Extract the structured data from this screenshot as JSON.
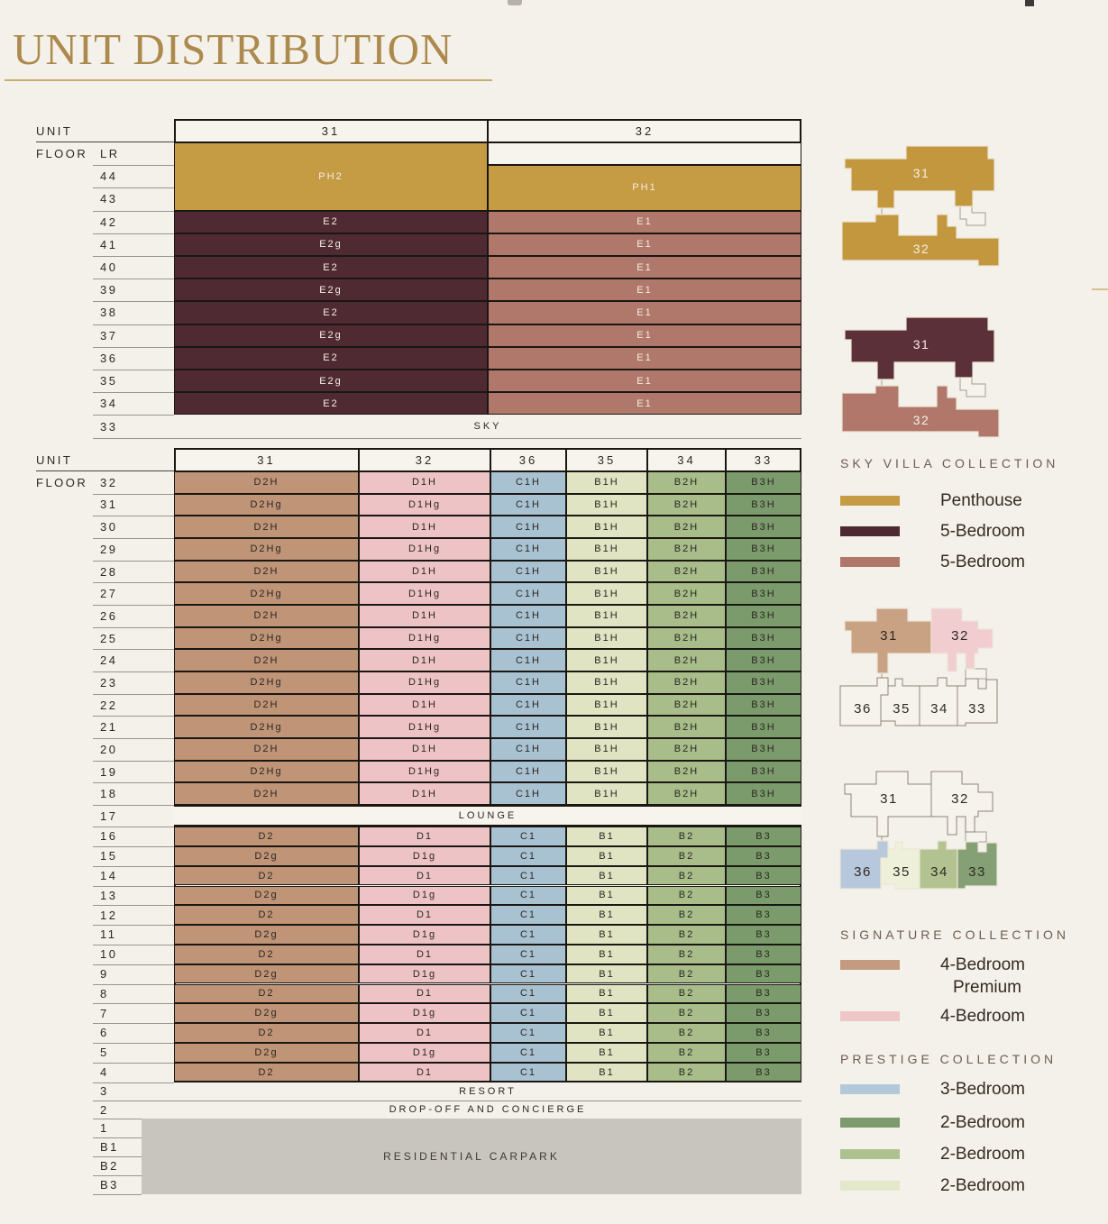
{
  "title": "UNIT DISTRIBUTION",
  "colors": {
    "background": "#f4f1ea",
    "title_gold": "#ac8a4e",
    "title_underline": "#c9ab72",
    "table_border": "#1a1713",
    "text_dark": "#2b2722",
    "text_light": "#f4eee3",
    "heading_muted": "#6d5c52",
    "legend_text": "#342a21",
    "line_gray": "#9a948a",
    "line_dark": "#4a453e",
    "cell_white": "#f7f4ee",
    "penthouse": "#c59b43",
    "bed5_dark": "#502a32",
    "bed5_light": "#b0786b",
    "bed4_premium": "#bf9477",
    "bed4": "#eec3c5",
    "bed3": "#a9c2d2",
    "bed2_pale": "#e0e4c3",
    "bed2_mid": "#a8bd8a",
    "bed2_dark": "#7c9b6c",
    "carpark_gray": "#c8c4be"
  },
  "upper_table": {
    "unit_label": "UNIT",
    "floor_label": "FLOOR",
    "units": [
      "31",
      "32"
    ],
    "floors": [
      "LR",
      "44",
      "43",
      "42",
      "41",
      "40",
      "39",
      "38",
      "37",
      "36",
      "35",
      "34"
    ],
    "cells": [
      {
        "col": 0,
        "row": 0,
        "span": 3,
        "label": "PH2",
        "key": "penthouse",
        "light": true
      },
      {
        "col": 1,
        "row": 0,
        "span": 1,
        "label": "",
        "key": "cell_white",
        "light": false
      },
      {
        "col": 1,
        "row": 1,
        "span": 2,
        "label": "PH1",
        "key": "penthouse",
        "light": true
      },
      {
        "col": 0,
        "row": 3,
        "span": 1,
        "label": "E2",
        "key": "bed5_dark",
        "light": true
      },
      {
        "col": 1,
        "row": 3,
        "span": 1,
        "label": "E1",
        "key": "bed5_light",
        "light": true
      },
      {
        "col": 0,
        "row": 4,
        "span": 1,
        "label": "E2g",
        "key": "bed5_dark",
        "light": true
      },
      {
        "col": 1,
        "row": 4,
        "span": 1,
        "label": "E1",
        "key": "bed5_light",
        "light": true
      },
      {
        "col": 0,
        "row": 5,
        "span": 1,
        "label": "E2",
        "key": "bed5_dark",
        "light": true
      },
      {
        "col": 1,
        "row": 5,
        "span": 1,
        "label": "E1",
        "key": "bed5_light",
        "light": true
      },
      {
        "col": 0,
        "row": 6,
        "span": 1,
        "label": "E2g",
        "key": "bed5_dark",
        "light": true
      },
      {
        "col": 1,
        "row": 6,
        "span": 1,
        "label": "E1",
        "key": "bed5_light",
        "light": true
      },
      {
        "col": 0,
        "row": 7,
        "span": 1,
        "label": "E2",
        "key": "bed5_dark",
        "light": true
      },
      {
        "col": 1,
        "row": 7,
        "span": 1,
        "label": "E1",
        "key": "bed5_light",
        "light": true
      },
      {
        "col": 0,
        "row": 8,
        "span": 1,
        "label": "E2g",
        "key": "bed5_dark",
        "light": true
      },
      {
        "col": 1,
        "row": 8,
        "span": 1,
        "label": "E1",
        "key": "bed5_light",
        "light": true
      },
      {
        "col": 0,
        "row": 9,
        "span": 1,
        "label": "E2",
        "key": "bed5_dark",
        "light": true
      },
      {
        "col": 1,
        "row": 9,
        "span": 1,
        "label": "E1",
        "key": "bed5_light",
        "light": true
      },
      {
        "col": 0,
        "row": 10,
        "span": 1,
        "label": "E2g",
        "key": "bed5_dark",
        "light": true
      },
      {
        "col": 1,
        "row": 10,
        "span": 1,
        "label": "E1",
        "key": "bed5_light",
        "light": true
      },
      {
        "col": 0,
        "row": 11,
        "span": 1,
        "label": "E2",
        "key": "bed5_dark",
        "light": true
      },
      {
        "col": 1,
        "row": 11,
        "span": 1,
        "label": "E1",
        "key": "bed5_light",
        "light": true
      }
    ],
    "sky_floor": "33",
    "sky_label": "SKY"
  },
  "lower_table": {
    "unit_label": "UNIT",
    "floor_label": "FLOOR",
    "units": [
      "31",
      "32",
      "36",
      "35",
      "34",
      "33"
    ],
    "column_keys": [
      "bed4_premium",
      "bed4",
      "bed3",
      "bed2_pale",
      "bed2_mid",
      "bed2_dark"
    ],
    "h_rows": [
      {
        "floor": "32",
        "cells": [
          "D2H",
          "D1H",
          "C1H",
          "B1H",
          "B2H",
          "B3H"
        ]
      },
      {
        "floor": "31",
        "cells": [
          "D2Hg",
          "D1Hg",
          "C1H",
          "B1H",
          "B2H",
          "B3H"
        ]
      },
      {
        "floor": "30",
        "cells": [
          "D2H",
          "D1H",
          "C1H",
          "B1H",
          "B2H",
          "B3H"
        ]
      },
      {
        "floor": "29",
        "cells": [
          "D2Hg",
          "D1Hg",
          "C1H",
          "B1H",
          "B2H",
          "B3H"
        ]
      },
      {
        "floor": "28",
        "cells": [
          "D2H",
          "D1H",
          "C1H",
          "B1H",
          "B2H",
          "B3H"
        ]
      },
      {
        "floor": "27",
        "cells": [
          "D2Hg",
          "D1Hg",
          "C1H",
          "B1H",
          "B2H",
          "B3H"
        ]
      },
      {
        "floor": "26",
        "cells": [
          "D2H",
          "D1H",
          "C1H",
          "B1H",
          "B2H",
          "B3H"
        ]
      },
      {
        "floor": "25",
        "cells": [
          "D2Hg",
          "D1Hg",
          "C1H",
          "B1H",
          "B2H",
          "B3H"
        ]
      },
      {
        "floor": "24",
        "cells": [
          "D2H",
          "D1H",
          "C1H",
          "B1H",
          "B2H",
          "B3H"
        ]
      },
      {
        "floor": "23",
        "cells": [
          "D2Hg",
          "D1Hg",
          "C1H",
          "B1H",
          "B2H",
          "B3H"
        ]
      },
      {
        "floor": "22",
        "cells": [
          "D2H",
          "D1H",
          "C1H",
          "B1H",
          "B2H",
          "B3H"
        ]
      },
      {
        "floor": "21",
        "cells": [
          "D2Hg",
          "D1Hg",
          "C1H",
          "B1H",
          "B2H",
          "B3H"
        ]
      },
      {
        "floor": "20",
        "cells": [
          "D2H",
          "D1H",
          "C1H",
          "B1H",
          "B2H",
          "B3H"
        ]
      },
      {
        "floor": "19",
        "cells": [
          "D2Hg",
          "D1Hg",
          "C1H",
          "B1H",
          "B2H",
          "B3H"
        ]
      },
      {
        "floor": "18",
        "cells": [
          "D2H",
          "D1H",
          "C1H",
          "B1H",
          "B2H",
          "B3H"
        ]
      }
    ],
    "lounge": {
      "floor": "17",
      "label": "LOUNGE"
    },
    "low_rows": [
      {
        "floor": "16",
        "cells": [
          "D2",
          "D1",
          "C1",
          "B1",
          "B2",
          "B3"
        ]
      },
      {
        "floor": "15",
        "cells": [
          "D2g",
          "D1g",
          "C1",
          "B1",
          "B2",
          "B3"
        ]
      },
      {
        "floor": "14",
        "cells": [
          "D2",
          "D1",
          "C1",
          "B1",
          "B2",
          "B3"
        ]
      },
      {
        "floor": "13",
        "cells": [
          "D2g",
          "D1g",
          "C1",
          "B1",
          "B2",
          "B3"
        ]
      },
      {
        "floor": "12",
        "cells": [
          "D2",
          "D1",
          "C1",
          "B1",
          "B2",
          "B3"
        ]
      },
      {
        "floor": "11",
        "cells": [
          "D2g",
          "D1g",
          "C1",
          "B1",
          "B2",
          "B3"
        ]
      },
      {
        "floor": "10",
        "cells": [
          "D2",
          "D1",
          "C1",
          "B1",
          "B2",
          "B3"
        ]
      },
      {
        "floor": "9",
        "cells": [
          "D2g",
          "D1g",
          "C1",
          "B1",
          "B2",
          "B3"
        ]
      },
      {
        "floor": "8",
        "cells": [
          "D2",
          "D1",
          "C1",
          "B1",
          "B2",
          "B3"
        ]
      },
      {
        "floor": "7",
        "cells": [
          "D2g",
          "D1g",
          "C1",
          "B1",
          "B2",
          "B3"
        ]
      },
      {
        "floor": "6",
        "cells": [
          "D2",
          "D1",
          "C1",
          "B1",
          "B2",
          "B3"
        ]
      },
      {
        "floor": "5",
        "cells": [
          "D2g",
          "D1g",
          "C1",
          "B1",
          "B2",
          "B3"
        ]
      },
      {
        "floor": "4",
        "cells": [
          "D2",
          "D1",
          "C1",
          "B1",
          "B2",
          "B3"
        ]
      }
    ],
    "resort": {
      "floor": "3",
      "label": "RESORT"
    },
    "dropoff": {
      "floor": "2",
      "label": "DROP-OFF AND CONCIERGE"
    },
    "carpark": {
      "floors": [
        "1",
        "B1",
        "B2",
        "B3"
      ],
      "label": "RESIDENTIAL CARPARK"
    }
  },
  "diagrams": [
    {
      "id": "plate-penthouse",
      "type": "A",
      "fills": {
        "u31": "#c3973d",
        "u32": "#c3973d"
      },
      "labels": {
        "u31": "31",
        "u32": "32"
      },
      "label_color": "#f6f0e4"
    },
    {
      "id": "plate-5bedroom",
      "type": "A",
      "fills": {
        "u31": "#5c3038",
        "u32": "#b1776b"
      },
      "labels": {
        "u31": "31",
        "u32": "32"
      },
      "label_color": "#f6f0e4"
    },
    {
      "id": "plate-signature",
      "type": "B",
      "fills": {
        "u31": "#c9a183",
        "u32": "#f1cdd0",
        "u36": "",
        "u35": "",
        "u34": "",
        "u33": ""
      },
      "labels": {
        "u31": "31",
        "u32": "32",
        "u36": "36",
        "u35": "35",
        "u34": "34",
        "u33": "33"
      },
      "label_color": "#2e2a24"
    },
    {
      "id": "plate-prestige",
      "type": "B",
      "fills": {
        "u31": "",
        "u32": "",
        "u36": "#b7c7dc",
        "u35": "#eef0d9",
        "u34": "#b2c391",
        "u33": "#85a074"
      },
      "labels": {
        "u31": "31",
        "u32": "32",
        "u36": "36",
        "u35": "35",
        "u34": "34",
        "u33": "33"
      },
      "label_color": "#2e2a24"
    }
  ],
  "legends": [
    {
      "title": "SKY VILLA COLLECTION",
      "items": [
        {
          "color": "#c59b43",
          "lines": [
            "Penthouse"
          ]
        },
        {
          "color": "#4e2931",
          "lines": [
            "5-Bedroom"
          ]
        },
        {
          "color": "#b0786b",
          "lines": [
            "5-Bedroom"
          ]
        }
      ]
    },
    {
      "title": "SIGNATURE COLLECTION",
      "items": [
        {
          "color": "#c49b80",
          "lines": [
            "4-Bedroom",
            "Premium"
          ]
        },
        {
          "color": "#edc7c7",
          "lines": [
            "4-Bedroom"
          ]
        }
      ]
    },
    {
      "title": "PRESTIGE COLLECTION",
      "items": [
        {
          "color": "#b3c8d9",
          "lines": [
            "3-Bedroom"
          ]
        },
        {
          "color": "#7d9a6f",
          "lines": [
            "2-Bedroom"
          ]
        },
        {
          "color": "#adc18e",
          "lines": [
            "2-Bedroom"
          ]
        },
        {
          "color": "#e4e8ca",
          "lines": [
            "2-Bedroom"
          ]
        }
      ]
    }
  ]
}
